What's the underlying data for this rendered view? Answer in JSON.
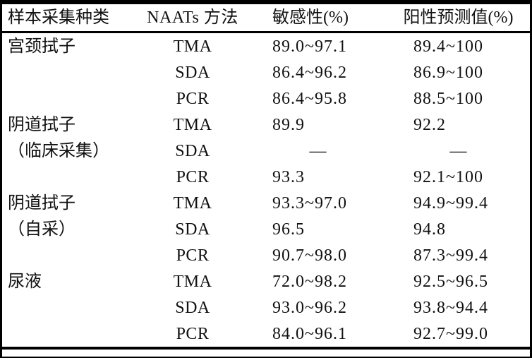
{
  "colors": {
    "text": "#111111",
    "rule": "#000000",
    "background": "#ffffff"
  },
  "chart_data": {
    "type": "table",
    "columns": [
      "样本采集种类",
      "NAATs 方法",
      "敏感性(%)",
      "阳性预测值(%)"
    ],
    "empty_marker": "—",
    "rows": [
      [
        "宫颈拭子",
        "TMA",
        "89.0~97.1",
        "89.4~100"
      ],
      [
        "",
        "SDA",
        "86.4~96.2",
        "86.9~100"
      ],
      [
        "",
        "PCR",
        "86.4~95.8",
        "88.5~100"
      ],
      [
        "阴道拭子",
        "TMA",
        "89.9",
        "92.2"
      ],
      [
        "（临床采集）",
        "SDA",
        "—",
        "—"
      ],
      [
        "",
        "PCR",
        "93.3",
        "92.1~100"
      ],
      [
        "阴道拭子",
        "TMA",
        "93.3~97.0",
        "94.9~99.4"
      ],
      [
        "（自采）",
        "SDA",
        "96.5",
        "94.8"
      ],
      [
        "",
        "PCR",
        "90.7~98.0",
        "87.3~99.4"
      ],
      [
        "尿液",
        "TMA",
        "72.0~98.2",
        "92.5~96.5"
      ],
      [
        "",
        "SDA",
        "93.0~96.2",
        "93.8~94.4"
      ],
      [
        "",
        "PCR",
        "84.0~96.1",
        "92.7~99.0"
      ]
    ]
  }
}
